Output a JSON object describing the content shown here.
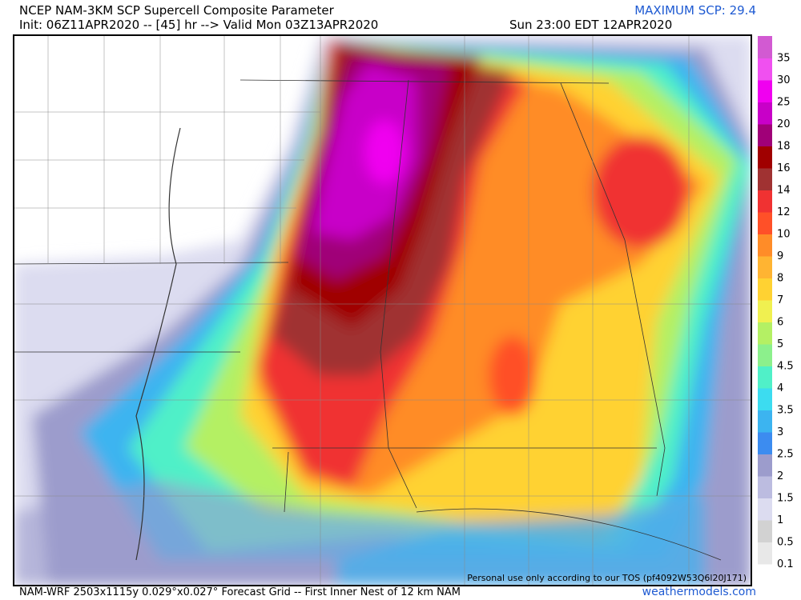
{
  "header": {
    "title": "NCEP NAM-3KM SCP Supercell Composite Parameter",
    "init": "Init: 06Z11APR2020 -- [45] hr --> Valid Mon 03Z13APR2020",
    "valid_local": "Sun 23:00 EDT 12APR2020",
    "maximum": "MAXIMUM SCP: 29.4"
  },
  "legend": {
    "labels": [
      "0.1",
      "0.5",
      "1",
      "1.5",
      "2",
      "2.5",
      "3",
      "3.5",
      "4",
      "4.5",
      "5",
      "6",
      "7",
      "8",
      "9",
      "10",
      "12",
      "14",
      "16",
      "18",
      "20",
      "25",
      "30",
      "35"
    ],
    "colors": [
      "#e8e8e8",
      "#d2d2d2",
      "#dcdcf0",
      "#bcbce0",
      "#9c9ccc",
      "#3c8cf0",
      "#3cb4f0",
      "#3cdcf0",
      "#50f0c8",
      "#8cf08c",
      "#b4f064",
      "#f0f050",
      "#ffd232",
      "#ffb432",
      "#ff8c28",
      "#ff5028",
      "#f03232",
      "#a03232",
      "#a00000",
      "#a00078",
      "#c800c8",
      "#f000f0",
      "#f050f0",
      "#d25ad2"
    ]
  },
  "watermark": "Personal use only according to our TOS (pf4092W53Q6l20J171)",
  "footer": {
    "grid": "NAM-WRF 2503x1115y 0.029°x0.027° Forecast Grid -- First Inner Nest of 12 km NAM",
    "site": "weathermodels.com"
  }
}
